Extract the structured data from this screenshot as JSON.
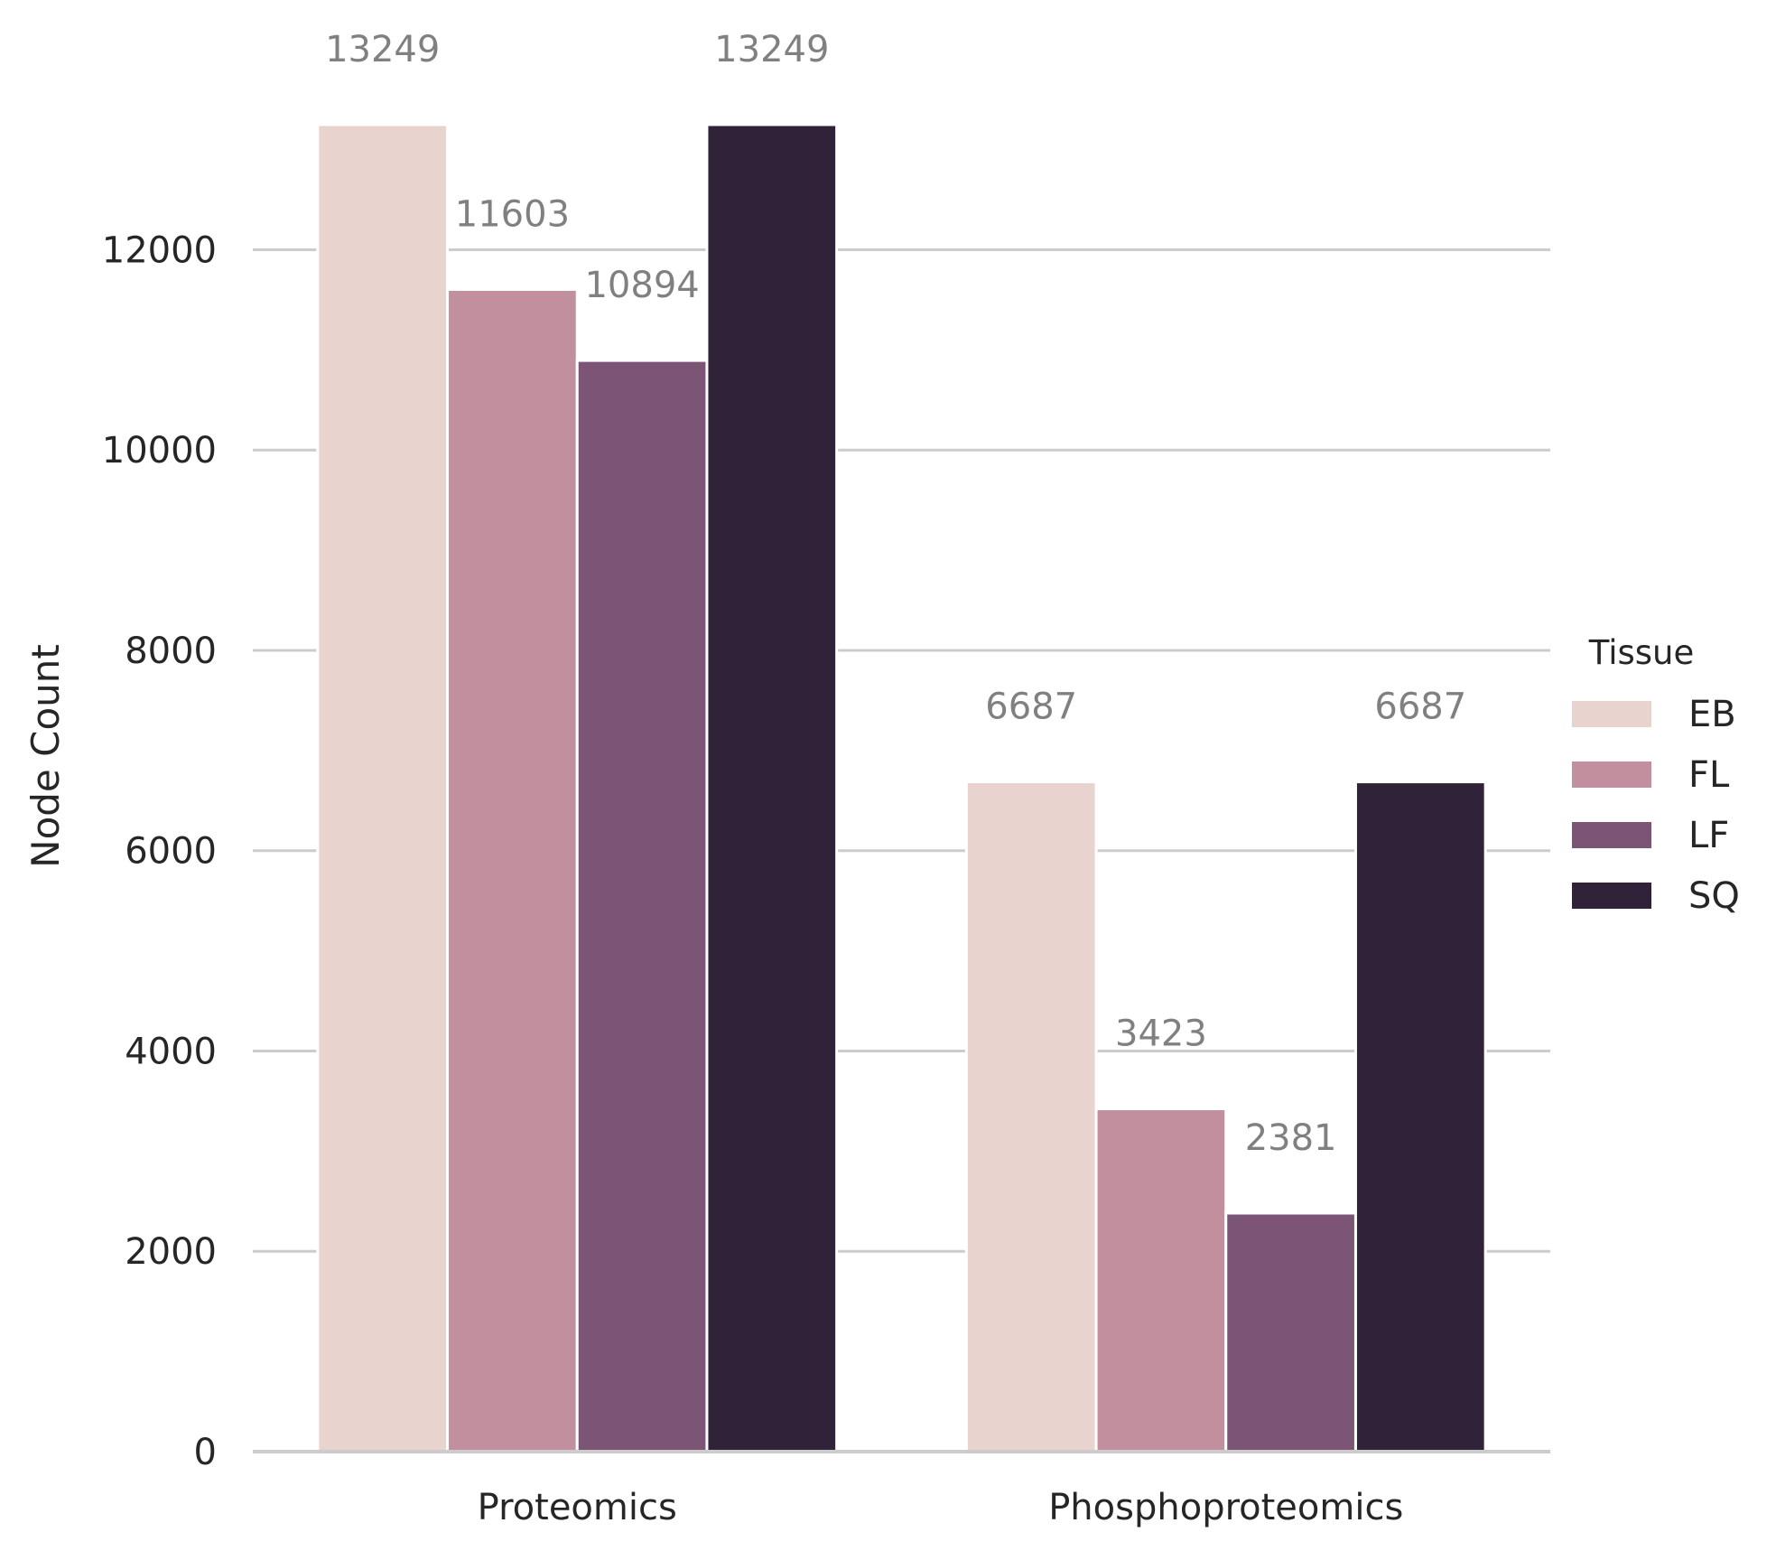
{
  "chart_data": {
    "type": "bar",
    "title": "",
    "xlabel": "",
    "ylabel": "Node Count",
    "ylim": [
      0,
      13249
    ],
    "yticks": [
      0,
      2000,
      4000,
      6000,
      8000,
      10000,
      12000
    ],
    "grid": "horizontal",
    "categories": [
      "Proteomics",
      "Phosphoproteomics"
    ],
    "legend": {
      "title": "Tissue",
      "placement": "center-right"
    },
    "series": [
      {
        "name": "EB",
        "color": "#e8d3cf",
        "values": [
          13249,
          6687
        ]
      },
      {
        "name": "FL",
        "color": "#c18f9e",
        "values": [
          11603,
          3423
        ]
      },
      {
        "name": "LF",
        "color": "#7b5476",
        "values": [
          10894,
          2381
        ]
      },
      {
        "name": "SQ",
        "color": "#2f2239",
        "values": [
          13249,
          6687
        ]
      }
    ]
  }
}
